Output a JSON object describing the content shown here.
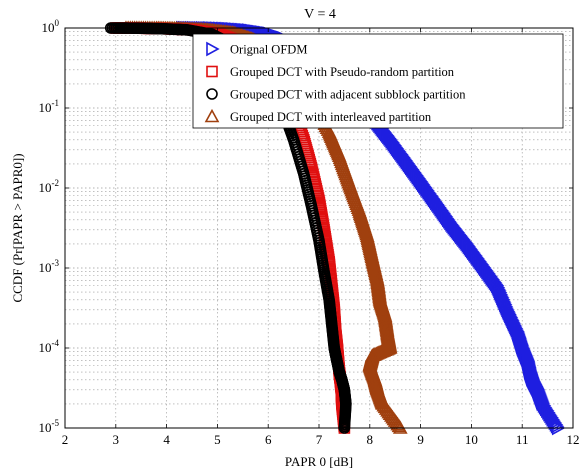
{
  "chart_data": {
    "type": "scatter",
    "title": "V = 4",
    "xlabel": "PAPR 0 [dB]",
    "ylabel": "CCDF (Pr[PAPR > PAPR0])",
    "xlim": [
      2,
      12
    ],
    "ylim": [
      1e-05,
      1
    ],
    "yscale": "log",
    "grid": true,
    "legend_position": "top-right",
    "x_ticks": [
      "2",
      "3",
      "4",
      "5",
      "6",
      "7",
      "8",
      "9",
      "10",
      "11",
      "12"
    ],
    "y_ticks": [
      {
        "base": "10",
        "exp": "0"
      },
      {
        "base": "10",
        "exp": "-1"
      },
      {
        "base": "10",
        "exp": "-2"
      },
      {
        "base": "10",
        "exp": "-3"
      },
      {
        "base": "10",
        "exp": "-4"
      },
      {
        "base": "10",
        "exp": "-5"
      }
    ],
    "series": [
      {
        "name": "Orignal OFDM",
        "marker": "triangle-right",
        "color": "#1f1fe0",
        "points": [
          [
            4.3,
            1.0
          ],
          [
            4.8,
            0.99
          ],
          [
            5.2,
            0.97
          ],
          [
            5.6,
            0.93
          ],
          [
            6.0,
            0.85
          ],
          [
            6.3,
            0.74
          ],
          [
            6.6,
            0.6
          ],
          [
            6.9,
            0.45
          ],
          [
            7.2,
            0.3
          ],
          [
            7.5,
            0.2
          ],
          [
            7.8,
            0.12
          ],
          [
            8.1,
            0.07
          ],
          [
            8.4,
            0.04
          ],
          [
            8.7,
            0.022
          ],
          [
            9.0,
            0.012
          ],
          [
            9.3,
            0.0065
          ],
          [
            9.6,
            0.0035
          ],
          [
            9.9,
            0.002
          ],
          [
            10.2,
            0.0011
          ],
          [
            10.5,
            0.0006
          ],
          [
            10.7,
            0.0003
          ],
          [
            10.9,
            0.00016
          ],
          [
            11.0,
            0.0001
          ],
          [
            11.1,
            7e-05
          ],
          [
            11.15,
            5e-05
          ],
          [
            11.2,
            4e-05
          ],
          [
            11.3,
            3e-05
          ],
          [
            11.4,
            2e-05
          ],
          [
            11.7,
            1e-05
          ]
        ]
      },
      {
        "name": "Grouped DCT with Pseudo-random partition",
        "marker": "square",
        "color": "#e01010",
        "points": [
          [
            3.0,
            1.0
          ],
          [
            3.5,
            0.995
          ],
          [
            4.0,
            0.98
          ],
          [
            4.5,
            0.95
          ],
          [
            5.0,
            0.85
          ],
          [
            5.5,
            0.65
          ],
          [
            5.8,
            0.45
          ],
          [
            6.1,
            0.28
          ],
          [
            6.3,
            0.17
          ],
          [
            6.5,
            0.09
          ],
          [
            6.7,
            0.04
          ],
          [
            6.85,
            0.018
          ],
          [
            7.0,
            0.007
          ],
          [
            7.1,
            0.003
          ],
          [
            7.2,
            0.0012
          ],
          [
            7.25,
            0.0006
          ],
          [
            7.3,
            0.0003
          ],
          [
            7.33,
            0.00015
          ],
          [
            7.36,
            0.0001
          ],
          [
            7.38,
            7e-05
          ],
          [
            7.4,
            5e-05
          ],
          [
            7.42,
            4e-05
          ],
          [
            7.44,
            3e-05
          ],
          [
            7.45,
            2e-05
          ],
          [
            7.5,
            1e-05
          ]
        ]
      },
      {
        "name": "Grouped DCT with adjacent subblock partition",
        "marker": "circle",
        "color": "#000000",
        "points": [
          [
            2.9,
            1.0
          ],
          [
            3.4,
            0.995
          ],
          [
            3.9,
            0.98
          ],
          [
            4.4,
            0.95
          ],
          [
            4.9,
            0.83
          ],
          [
            5.3,
            0.62
          ],
          [
            5.7,
            0.38
          ],
          [
            6.0,
            0.2
          ],
          [
            6.3,
            0.09
          ],
          [
            6.5,
            0.04
          ],
          [
            6.7,
            0.015
          ],
          [
            6.85,
            0.006
          ],
          [
            7.0,
            0.0022
          ],
          [
            7.1,
            0.0009
          ],
          [
            7.2,
            0.0004
          ],
          [
            7.25,
            0.0002
          ],
          [
            7.3,
            0.0001
          ],
          [
            7.35,
            7e-05
          ],
          [
            7.4,
            5e-05
          ],
          [
            7.45,
            4e-05
          ],
          [
            7.5,
            3e-05
          ],
          [
            7.53,
            2e-05
          ],
          [
            7.5,
            1e-05
          ]
        ]
      },
      {
        "name": "Grouped DCT with interleaved partition",
        "marker": "triangle-up",
        "color": "#a0400f",
        "points": [
          [
            3.2,
            1.0
          ],
          [
            3.8,
            0.995
          ],
          [
            4.3,
            0.98
          ],
          [
            4.8,
            0.95
          ],
          [
            5.3,
            0.87
          ],
          [
            5.7,
            0.72
          ],
          [
            6.0,
            0.55
          ],
          [
            6.3,
            0.38
          ],
          [
            6.6,
            0.22
          ],
          [
            6.9,
            0.11
          ],
          [
            7.2,
            0.05
          ],
          [
            7.4,
            0.025
          ],
          [
            7.6,
            0.011
          ],
          [
            7.8,
            0.005
          ],
          [
            7.95,
            0.0025
          ],
          [
            8.05,
            0.0013
          ],
          [
            8.15,
            0.0007
          ],
          [
            8.2,
            0.0004
          ],
          [
            8.3,
            0.00025
          ],
          [
            8.35,
            0.00015
          ],
          [
            8.4,
            0.0001
          ],
          [
            8.05,
            8e-05
          ],
          [
            8.0,
            6e-05
          ],
          [
            8.1,
            4e-05
          ],
          [
            8.15,
            3e-05
          ],
          [
            8.25,
            2e-05
          ],
          [
            8.6,
            1e-05
          ]
        ]
      }
    ]
  }
}
